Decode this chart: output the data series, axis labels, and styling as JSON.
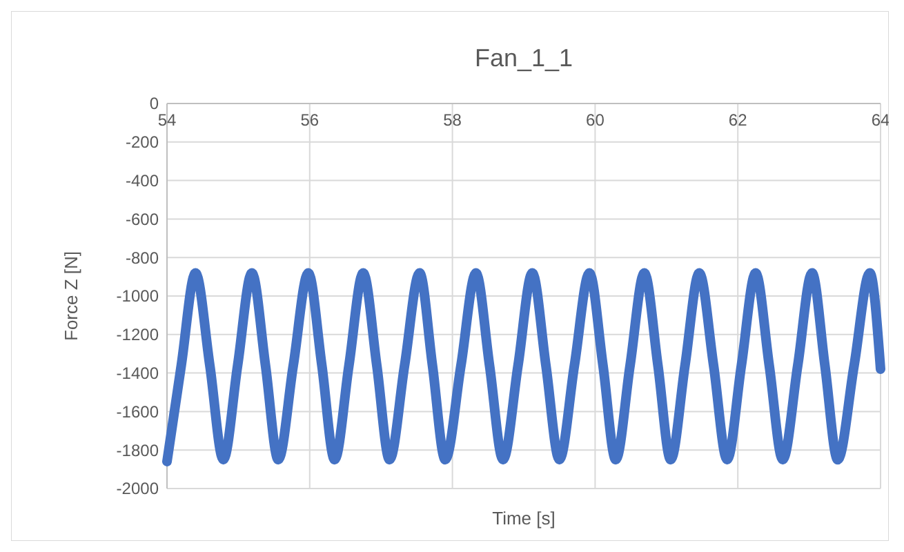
{
  "chart_data": {
    "type": "line",
    "title": "Fan_1_1",
    "xlabel": "Time [s]",
    "ylabel": "Force Z [N]",
    "xlim": [
      54,
      64
    ],
    "xticks": [
      54,
      56,
      58,
      60,
      62,
      64
    ],
    "ylim": [
      -2000,
      0
    ],
    "yticks": [
      -2000,
      -1800,
      -1600,
      -1400,
      -1200,
      -1000,
      -800,
      -600,
      -400,
      -200,
      0
    ],
    "grid": true,
    "marker": "none",
    "line_style": "solid",
    "series": [
      {
        "color": "#4472c4",
        "x": [
          54.0,
          54.2,
          54.4,
          54.6,
          54.79,
          54.99,
          55.19,
          55.38,
          55.56,
          55.77,
          55.98,
          56.17,
          56.35,
          56.55,
          56.75,
          56.94,
          57.12,
          57.33,
          57.54,
          57.72,
          57.9,
          58.12,
          58.33,
          58.52,
          58.71,
          58.92,
          59.12,
          59.31,
          59.5,
          59.71,
          59.92,
          60.11,
          60.29,
          60.49,
          60.69,
          60.88,
          61.06,
          61.26,
          61.46,
          61.66,
          61.85,
          62.05,
          62.25,
          62.44,
          62.63,
          62.84,
          63.04,
          63.22,
          63.4,
          63.63,
          63.85,
          64.0
        ],
        "values": [
          -1860,
          -1360,
          -880,
          -1360,
          -1850,
          -1360,
          -880,
          -1360,
          -1850,
          -1360,
          -880,
          -1360,
          -1850,
          -1360,
          -880,
          -1360,
          -1850,
          -1360,
          -880,
          -1360,
          -1850,
          -1360,
          -880,
          -1360,
          -1850,
          -1360,
          -880,
          -1360,
          -1850,
          -1360,
          -880,
          -1360,
          -1850,
          -1360,
          -880,
          -1360,
          -1850,
          -1360,
          -880,
          -1360,
          -1850,
          -1360,
          -880,
          -1360,
          -1850,
          -1360,
          -880,
          -1360,
          -1850,
          -1360,
          -880,
          -1380
        ]
      }
    ]
  }
}
